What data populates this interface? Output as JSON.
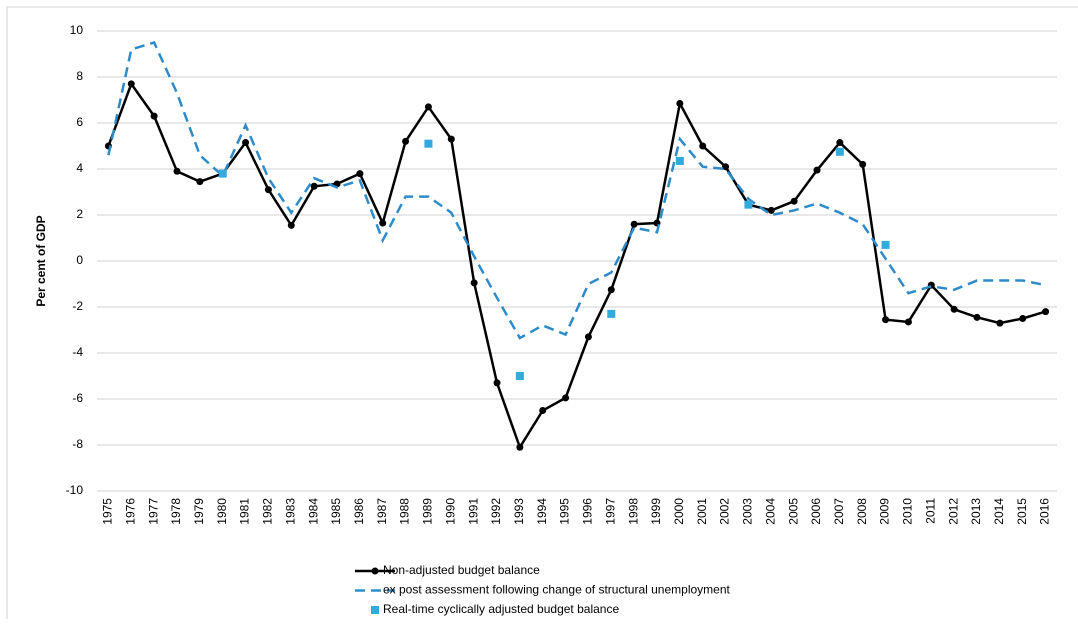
{
  "chart_data": {
    "type": "line",
    "y_label": "Per cent of GDP",
    "categories": [
      "1975",
      "1976",
      "1977",
      "1978",
      "1979",
      "1980",
      "1981",
      "1982",
      "1983",
      "1984",
      "1985",
      "1986",
      "1987",
      "1988",
      "1989",
      "1990",
      "1991",
      "1992",
      "1993",
      "1994",
      "1995",
      "1996",
      "1997",
      "1998",
      "1999",
      "2000",
      "2001",
      "2002",
      "2003",
      "2004",
      "2005",
      "2006",
      "2007",
      "2008",
      "2009",
      "2010",
      "2011",
      "2012",
      "2013",
      "2014",
      "2015",
      "2016"
    ],
    "series": [
      {
        "name": "Non-adjusted budget balance",
        "color": "#000000",
        "line_style": "solid",
        "marker": "circle",
        "values": [
          5.0,
          7.7,
          6.3,
          3.9,
          3.45,
          3.8,
          5.15,
          3.1,
          1.55,
          3.25,
          3.35,
          3.8,
          1.65,
          5.2,
          6.7,
          5.3,
          -0.95,
          -5.3,
          -8.1,
          -6.5,
          -5.95,
          -3.3,
          -1.25,
          1.6,
          1.65,
          6.85,
          5.0,
          4.1,
          2.45,
          2.2,
          2.6,
          3.95,
          5.15,
          4.2,
          -2.55,
          -2.65,
          -1.05,
          -2.1,
          -2.45,
          -2.7,
          -2.5,
          -2.2
        ]
      },
      {
        "name": "ex post assessment following change of structural unemployment",
        "color": "#2e8bc9",
        "line_style": "dashed",
        "marker": "none",
        "values": [
          4.6,
          9.2,
          9.5,
          7.3,
          4.6,
          3.7,
          5.9,
          3.6,
          2.1,
          3.6,
          3.2,
          3.5,
          0.9,
          2.8,
          2.8,
          2.1,
          0.2,
          -1.6,
          -3.35,
          -2.8,
          -3.2,
          -1.0,
          -0.5,
          1.45,
          1.25,
          5.3,
          4.1,
          4.0,
          2.7,
          2.0,
          2.2,
          2.5,
          2.1,
          1.6,
          0.1,
          -1.4,
          -1.1,
          -1.25,
          -0.85,
          -0.85,
          -0.85,
          -1.05
        ]
      },
      {
        "name": "Real-time cyclically adjusted budget balance",
        "color": "#33aadd",
        "line_style": "none",
        "marker": "square",
        "values": [
          null,
          null,
          null,
          null,
          null,
          3.8,
          null,
          null,
          null,
          null,
          null,
          null,
          null,
          null,
          5.1,
          null,
          null,
          null,
          -5.0,
          null,
          null,
          null,
          -2.3,
          null,
          null,
          4.35,
          null,
          null,
          2.45,
          null,
          null,
          null,
          4.75,
          null,
          0.7,
          null,
          null,
          null,
          null,
          null,
          null,
          null
        ]
      }
    ],
    "ylim": [
      -10,
      10
    ],
    "yticks": [
      -10,
      -8,
      -6,
      -4,
      -2,
      0,
      2,
      4,
      6,
      8,
      10
    ],
    "grid": true,
    "legend": "bottom"
  }
}
